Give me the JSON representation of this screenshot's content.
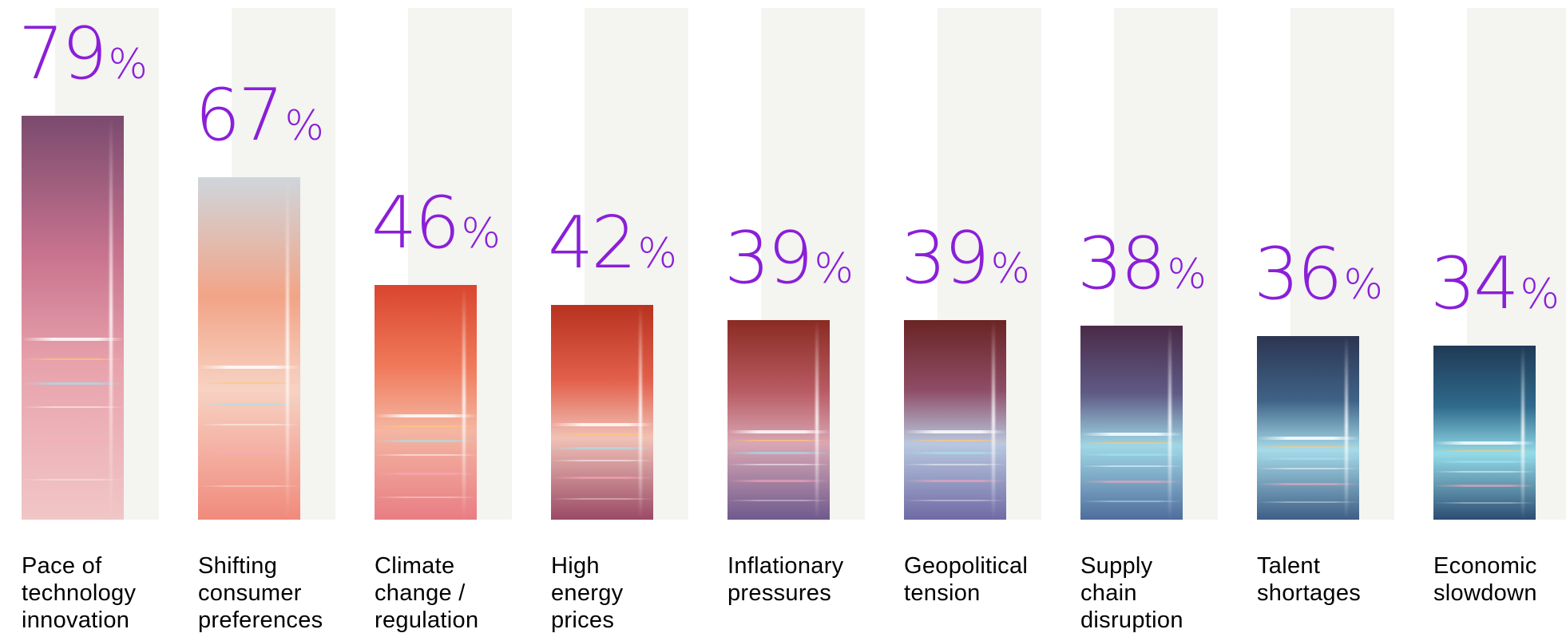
{
  "chart_data": {
    "type": "bar",
    "categories": [
      "Pace of\ntechnology\ninnovation",
      "Shifting\nconsumer\npreferences",
      "Climate\nchange /\nregulation",
      "High\nenergy\nprices",
      "Inflationary\npressures",
      "Geopolitical\ntension",
      "Supply\nchain\ndisruption",
      "Talent\nshortages",
      "Economic\nslowdown"
    ],
    "values": [
      79,
      67,
      46,
      42,
      39,
      39,
      38,
      36,
      34
    ],
    "value_labels": [
      "79",
      "67",
      "46",
      "42",
      "39",
      "39",
      "38",
      "36",
      "34"
    ],
    "unit_symbol": "%",
    "title": "",
    "xlabel": "",
    "ylabel": "",
    "ylim": [
      0,
      100
    ],
    "grid": false,
    "legend": "none"
  },
  "colors": {
    "value_text": "#8a1fd8",
    "label_text": "#000000",
    "column_background": "#f4f4f1",
    "bar_palettes": [
      [
        "#7a4a6e",
        "#c9748f",
        "#e8a3ac",
        "#f1c6c6"
      ],
      [
        "#cfd6dc",
        "#f2a487",
        "#f7d2c3",
        "#f08a7c"
      ],
      [
        "#d9452e",
        "#f07a5b",
        "#f4b6a2",
        "#e87d84"
      ],
      [
        "#b8321f",
        "#e2604b",
        "#f0c1b6",
        "#9a4a66"
      ],
      [
        "#8a2b22",
        "#b85a62",
        "#d8a7b4",
        "#6f5a8e"
      ],
      [
        "#6a2424",
        "#8e4d66",
        "#b9c8e0",
        "#6f6aa4"
      ],
      [
        "#4a2a48",
        "#5f5b86",
        "#9fd7e6",
        "#4f6d9c"
      ],
      [
        "#2c3552",
        "#3f6287",
        "#a7dbe9",
        "#3e5e86"
      ],
      [
        "#1f3a55",
        "#2f6a8c",
        "#93dbe8",
        "#2c4d72"
      ]
    ]
  }
}
